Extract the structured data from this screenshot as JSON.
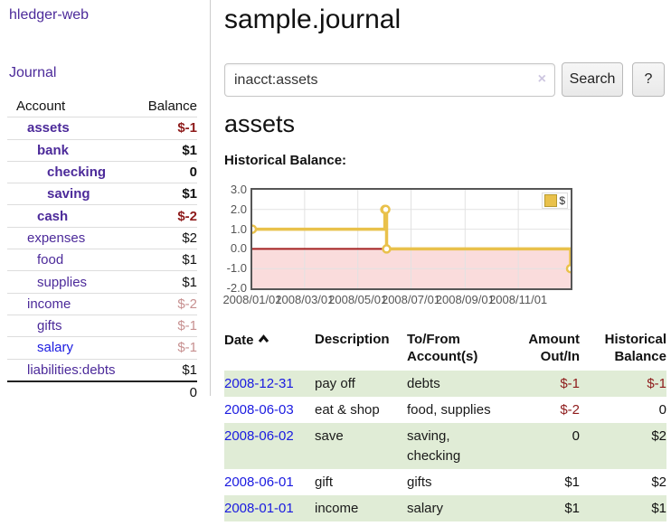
{
  "colors": {
    "purple": "#4c2a9a",
    "blue": "#1a1ae0",
    "neg": "#8e1b1b",
    "negsoft": "#c79090",
    "green": "#e0ecd6",
    "gold": "#e9c14b"
  },
  "app": {
    "brand": "hledger-web",
    "nav_journal": "Journal"
  },
  "sidebar": {
    "header": {
      "account": "Account",
      "balance": "Balance"
    },
    "rows": [
      {
        "name": "assets",
        "balance": "$-1"
      },
      {
        "name": "bank",
        "balance": "$1"
      },
      {
        "name": "checking",
        "balance": "0"
      },
      {
        "name": "saving",
        "balance": "$1"
      },
      {
        "name": "cash",
        "balance": "$-2"
      },
      {
        "name": "expenses",
        "balance": "$2"
      },
      {
        "name": "food",
        "balance": "$1"
      },
      {
        "name": "supplies",
        "balance": "$1"
      },
      {
        "name": "income",
        "balance": "$-2"
      },
      {
        "name": "gifts",
        "balance": "$-1"
      },
      {
        "name": "salary",
        "balance": "$-1"
      },
      {
        "name": "liabilities:debts",
        "balance": "$1"
      }
    ],
    "total": "0"
  },
  "main": {
    "title": "sample.journal",
    "search": {
      "query": "inacct:assets",
      "button": "Search",
      "help": "?",
      "clear_icon": "×"
    },
    "account_heading": "assets",
    "chart_heading": "Historical Balance:"
  },
  "chart_data": {
    "type": "line",
    "title": "Historical Balance",
    "legend": "$",
    "legend_position": "top-right",
    "grid": true,
    "xlim": [
      "2008-01-01",
      "2008-12-31"
    ],
    "ylim": [
      -2,
      3
    ],
    "y_ticks": [
      3,
      2,
      1,
      0,
      -1,
      -2
    ],
    "x_ticks": [
      {
        "date": "2008-01-01",
        "label": "2008/01/01"
      },
      {
        "date": "2008-03-01",
        "label": "2008/03/01"
      },
      {
        "date": "2008-05-01",
        "label": "2008/05/01"
      },
      {
        "date": "2008-07-01",
        "label": "2008/07/01"
      },
      {
        "date": "2008-09-01",
        "label": "2008/09/01"
      },
      {
        "date": "2008-11-01",
        "label": "2008/11/01"
      }
    ],
    "series": [
      {
        "name": "$",
        "color": "#e9c14b",
        "step": true,
        "points": [
          [
            "2008-01-01",
            1
          ],
          [
            "2008-06-01",
            2
          ],
          [
            "2008-06-02",
            2
          ],
          [
            "2008-06-03",
            0
          ],
          [
            "2008-12-31",
            -1
          ]
        ]
      }
    ],
    "colors": {
      "negative_region": "#fadcdc",
      "zero_line": "#a32020",
      "gridline": "#e2e2e2"
    }
  },
  "register": {
    "headers": {
      "date": "Date",
      "description": "Description",
      "accounts": "To/From Account(s)",
      "amount": "Amount Out/In",
      "balance": "Historical Balance"
    },
    "rows": [
      {
        "date": "2008-12-31",
        "description": "pay off",
        "accounts": "debts",
        "amount": "$-1",
        "balance": "$-1"
      },
      {
        "date": "2008-06-03",
        "description": "eat & shop",
        "accounts": "food, supplies",
        "amount": "$-2",
        "balance": "0"
      },
      {
        "date": "2008-06-02",
        "description": "save",
        "accounts": "saving, checking",
        "amount": "0",
        "balance": "$2"
      },
      {
        "date": "2008-06-01",
        "description": "gift",
        "accounts": "gifts",
        "amount": "$1",
        "balance": "$2"
      },
      {
        "date": "2008-01-01",
        "description": "income",
        "accounts": "salary",
        "amount": "$1",
        "balance": "$1"
      }
    ]
  }
}
